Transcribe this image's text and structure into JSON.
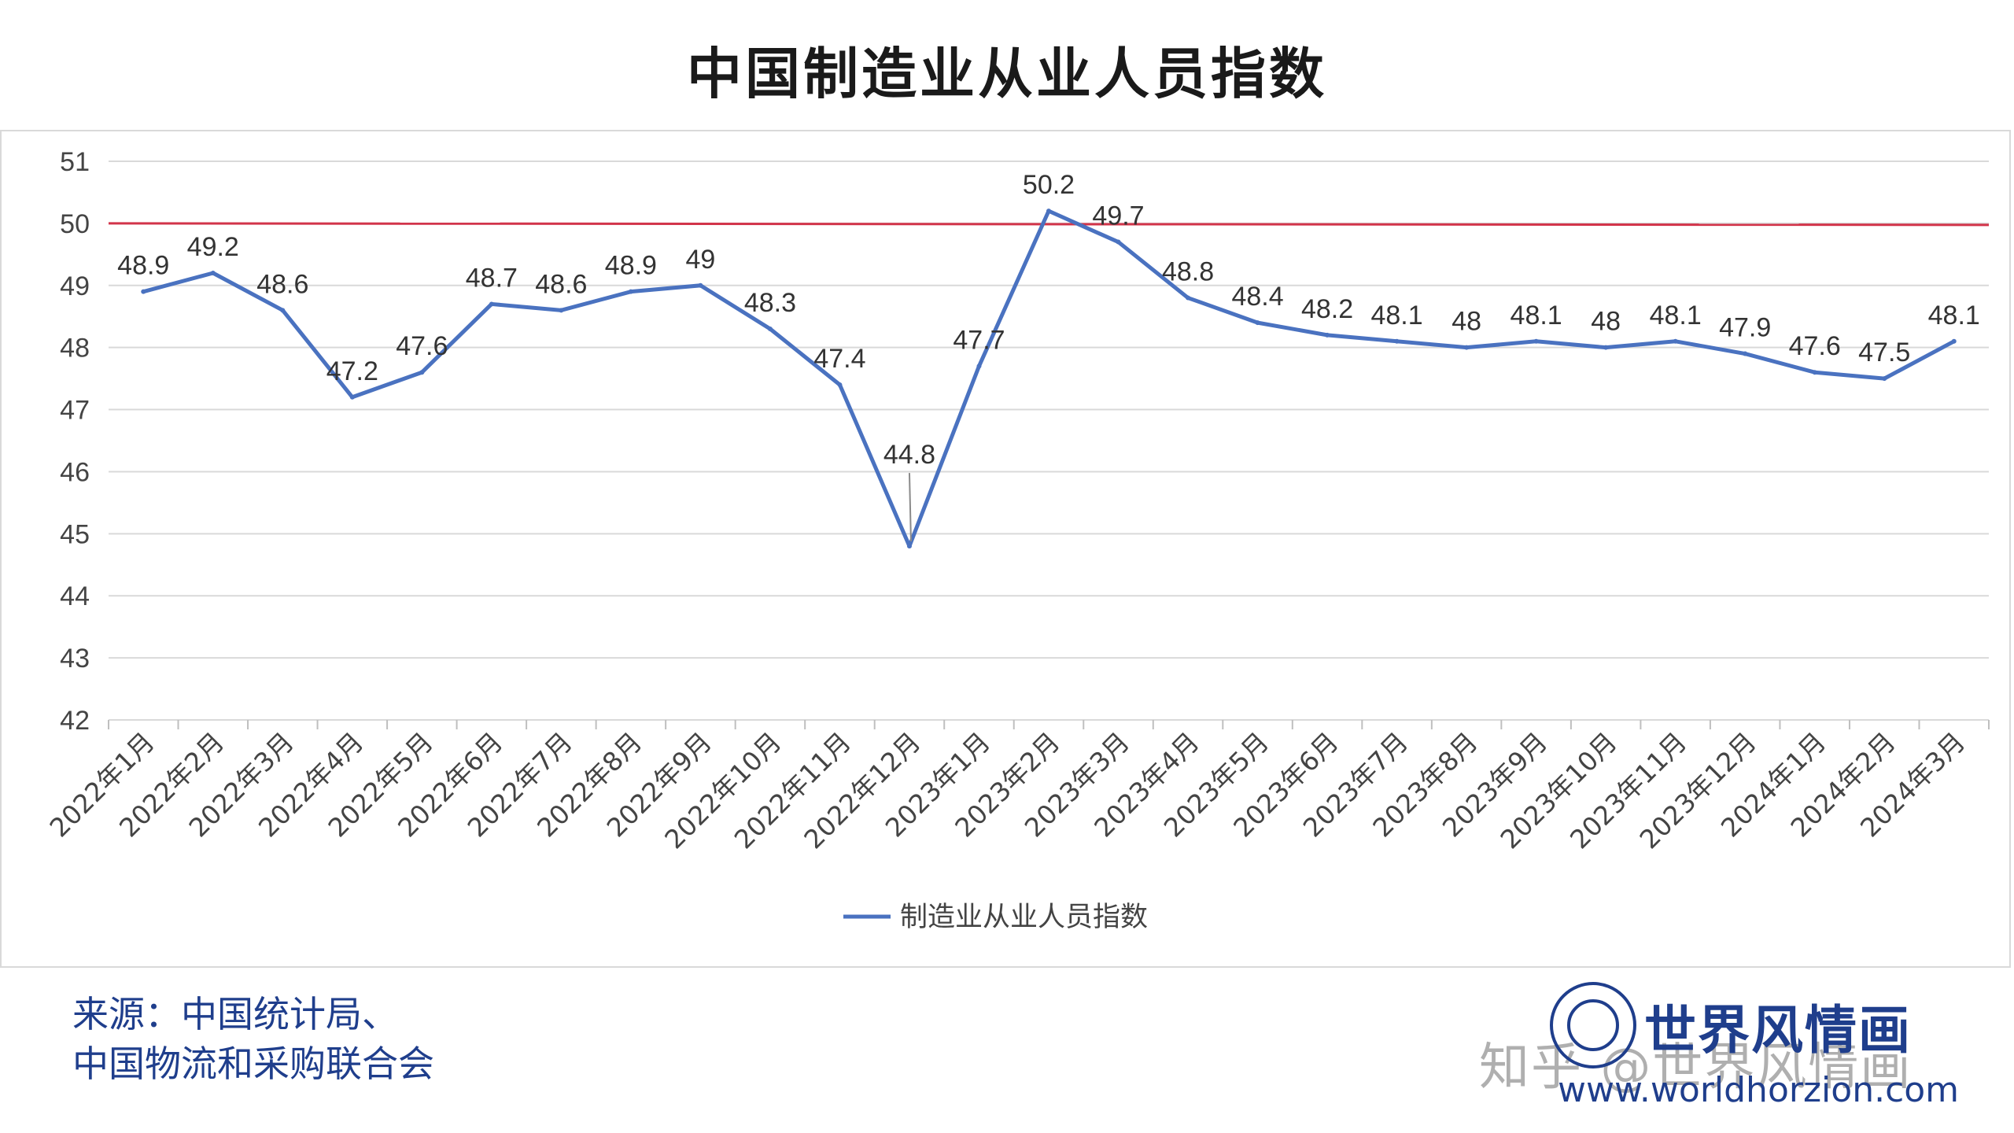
{
  "title": "中国制造业从业人员指数",
  "source": {
    "line1": "来源：中国统计局、",
    "line2": "中国物流和采购联合会"
  },
  "brand": {
    "name": "世界风情画",
    "url": "www.worldhorzion.com"
  },
  "watermark": "知乎 @世界风情画",
  "chart_data": {
    "type": "line",
    "title": "中国制造业从业人员指数",
    "categories": [
      "2022年1月",
      "2022年2月",
      "2022年3月",
      "2022年4月",
      "2022年5月",
      "2022年6月",
      "2022年7月",
      "2022年8月",
      "2022年9月",
      "2022年10月",
      "2022年11月",
      "2022年12月",
      "2023年1月",
      "2023年2月",
      "2023年3月",
      "2023年4月",
      "2023年5月",
      "2023年6月",
      "2023年7月",
      "2023年8月",
      "2023年9月",
      "2023年10月",
      "2023年11月",
      "2023年12月",
      "2024年1月",
      "2024年2月",
      "2024年3月"
    ],
    "series": [
      {
        "name": "制造业从业人员指数",
        "color": "#4a72c0",
        "values": [
          48.9,
          49.2,
          48.6,
          47.2,
          47.6,
          48.7,
          48.6,
          48.9,
          49,
          48.3,
          47.4,
          44.8,
          47.7,
          50.2,
          49.7,
          48.8,
          48.4,
          48.2,
          48.1,
          48,
          48.1,
          48,
          48.1,
          47.9,
          47.6,
          47.5,
          48.1
        ],
        "data_labels": [
          "48.9",
          "49.2",
          "48.6",
          "47.2",
          "47.6",
          "48.7",
          "48.6",
          "48.9",
          "49",
          "48.3",
          "47.4",
          "44.8",
          "47.7",
          "50.2",
          "49.7",
          "48.8",
          "48.4",
          "48.2",
          "48.1",
          "48",
          "48.1",
          "48",
          "48.1",
          "47.9",
          "47.6",
          "47.5",
          "48.1"
        ]
      }
    ],
    "reference_line": {
      "value": 50,
      "color": "#d2344a"
    },
    "ylim": [
      42,
      51
    ],
    "yticks": [
      "42",
      "43",
      "44",
      "45",
      "46",
      "47",
      "48",
      "49",
      "50",
      "51"
    ],
    "grid": true,
    "legend_position": "bottom"
  }
}
